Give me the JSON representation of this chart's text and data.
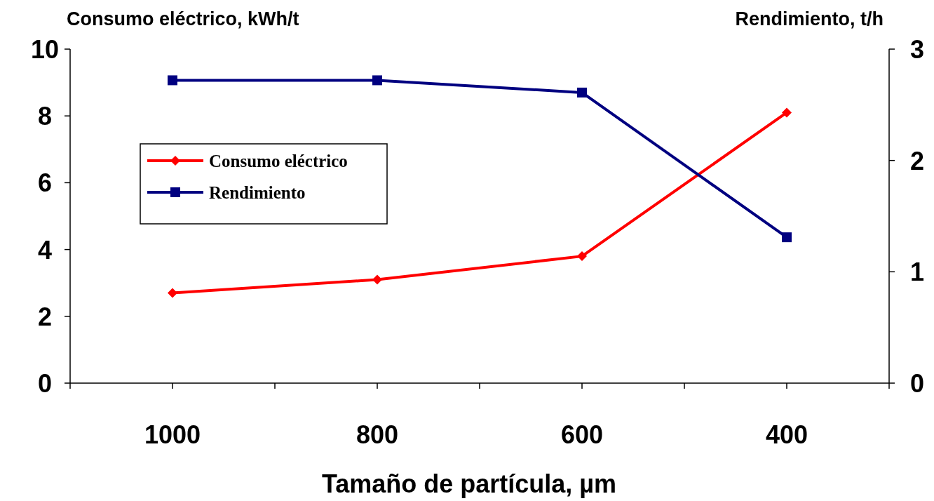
{
  "chart_data": {
    "type": "line",
    "xlabel": "Tamaño de partícula, µm",
    "ylabel": "Consumo eléctrico, kWh/t",
    "y2label": "Rendimiento, t/h",
    "x": [
      1000,
      800,
      600,
      400
    ],
    "xlim": [
      1100,
      300
    ],
    "xticks": [
      {
        "value": 1100,
        "label": null
      },
      {
        "value": 1000,
        "label": "1000"
      },
      {
        "value": 900,
        "label": null
      },
      {
        "value": 800,
        "label": "800"
      },
      {
        "value": 700,
        "label": null
      },
      {
        "value": 600,
        "label": "600"
      },
      {
        "value": 500,
        "label": null
      },
      {
        "value": 400,
        "label": "400"
      },
      {
        "value": 300,
        "label": null
      }
    ],
    "ylim": [
      0,
      10
    ],
    "yticks": [
      0,
      2,
      4,
      6,
      8,
      10
    ],
    "y2lim": [
      0,
      3
    ],
    "y2ticks": [
      0,
      1,
      2,
      3
    ],
    "series": [
      {
        "name": "Consumo eléctrico",
        "color": "#ff0000",
        "marker": "diamond",
        "values": [
          2.7,
          3.1,
          3.8,
          8.1
        ]
      },
      {
        "name": "Rendimiento",
        "color": "#000080",
        "marker": "square",
        "axis": "y2",
        "values": [
          2.72,
          2.72,
          2.61,
          1.31
        ]
      }
    ],
    "legend": "top left",
    "grid": false,
    "line_style": "solid"
  }
}
